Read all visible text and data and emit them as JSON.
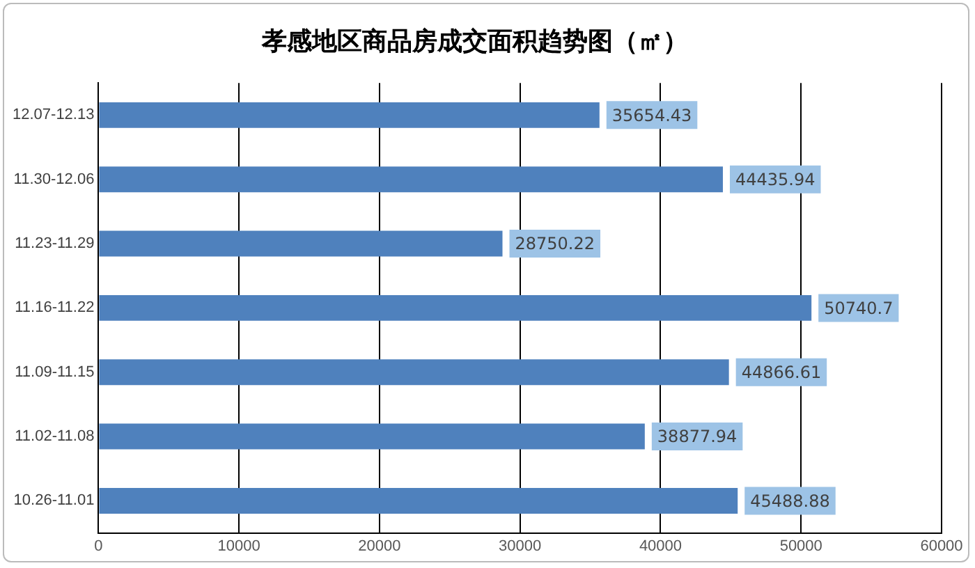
{
  "chart_data": {
    "type": "bar",
    "orientation": "horizontal",
    "title": "孝感地区商品房成交面积趋势图（㎡）",
    "categories": [
      "12.07-12.13",
      "11.30-12.06",
      "11.23-11.29",
      "11.16-11.22",
      "11.09-11.15",
      "11.02-11.08",
      "10.26-11.01"
    ],
    "values": [
      35654.43,
      44435.94,
      28750.22,
      50740.7,
      44866.61,
      38877.94,
      45488.88
    ],
    "color": "#4f81bd",
    "xlim": [
      0,
      60000
    ],
    "xticks": [
      0,
      10000,
      20000,
      30000,
      40000,
      50000,
      60000
    ],
    "grid": "x",
    "legend": false,
    "data_labels": true
  }
}
